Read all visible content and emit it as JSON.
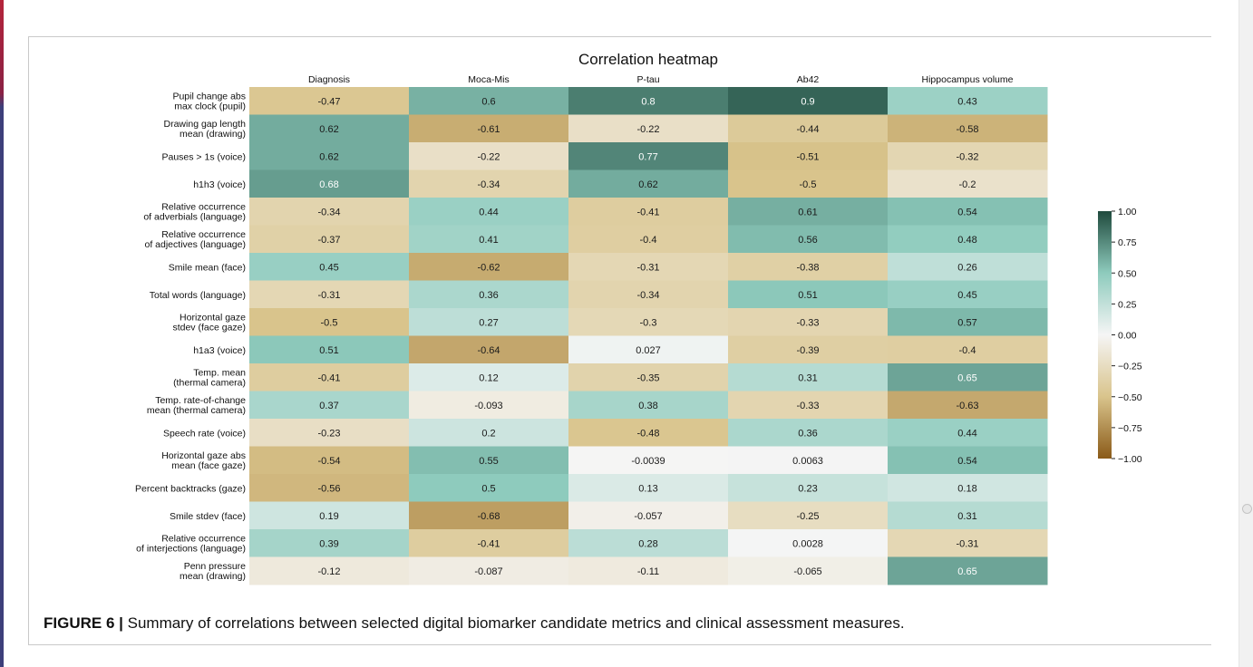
{
  "caption": {
    "label": "FIGURE 6 |",
    "text": " Summary of correlations between selected digital biomarker candidate metrics and clinical assessment measures."
  },
  "colors": {
    "min": "#8a5a18",
    "negative_mid": "#d9c48c",
    "zero": "#f5f5f5",
    "positive_mid": "#8ecbbd",
    "max": "#1f4a3d"
  },
  "chart_data": {
    "type": "heatmap",
    "title": "Correlation heatmap",
    "columns": [
      "Diagnosis",
      "Moca-Mis",
      "P-tau",
      "Ab42",
      "Hippocampus volume"
    ],
    "rows": [
      "Pupil change abs\nmax clock (pupil)",
      "Drawing gap length\nmean (drawing)",
      "Pauses > 1s (voice)",
      "h1h3 (voice)",
      "Relative occurrence\nof adverbials (language)",
      "Relative occurrence\nof adjectives (language)",
      "Smile mean (face)",
      "Total words (language)",
      "Horizontal gaze\nstdev (face gaze)",
      "h1a3 (voice)",
      "Temp. mean\n(thermal camera)",
      "Temp. rate-of-change\nmean (thermal camera)",
      "Speech rate (voice)",
      "Horizontal gaze abs\nmean (face gaze)",
      "Percent backtracks (gaze)",
      "Smile stdev (face)",
      "Relative occurrence\nof interjections (language)",
      "Penn pressure\nmean (drawing)"
    ],
    "values": [
      [
        "-0.47",
        "0.6",
        "0.8",
        "0.9",
        "0.43"
      ],
      [
        "0.62",
        "-0.61",
        "-0.22",
        "-0.44",
        "-0.58"
      ],
      [
        "0.62",
        "-0.22",
        "0.77",
        "-0.51",
        "-0.32"
      ],
      [
        "0.68",
        "-0.34",
        "0.62",
        "-0.5",
        "-0.2"
      ],
      [
        "-0.34",
        "0.44",
        "-0.41",
        "0.61",
        "0.54"
      ],
      [
        "-0.37",
        "0.41",
        "-0.4",
        "0.56",
        "0.48"
      ],
      [
        "0.45",
        "-0.62",
        "-0.31",
        "-0.38",
        "0.26"
      ],
      [
        "-0.31",
        "0.36",
        "-0.34",
        "0.51",
        "0.45"
      ],
      [
        "-0.5",
        "0.27",
        "-0.3",
        "-0.33",
        "0.57"
      ],
      [
        "0.51",
        "-0.64",
        "0.027",
        "-0.39",
        "-0.4"
      ],
      [
        "-0.41",
        "0.12",
        "-0.35",
        "0.31",
        "0.65"
      ],
      [
        "0.37",
        "-0.093",
        "0.38",
        "-0.33",
        "-0.63"
      ],
      [
        "-0.23",
        "0.2",
        "-0.48",
        "0.36",
        "0.44"
      ],
      [
        "-0.54",
        "0.55",
        "-0.0039",
        "0.0063",
        "0.54"
      ],
      [
        "-0.56",
        "0.5",
        "0.13",
        "0.23",
        "0.18"
      ],
      [
        "0.19",
        "-0.68",
        "-0.057",
        "-0.25",
        "0.31"
      ],
      [
        "0.39",
        "-0.41",
        "0.28",
        "0.0028",
        "-0.31"
      ],
      [
        "-0.12",
        "-0.087",
        "-0.11",
        "-0.065",
        "0.65"
      ]
    ],
    "colorbar": {
      "range": [
        -1.0,
        1.0
      ],
      "ticks": [
        "1.00",
        "0.75",
        "0.50",
        "0.25",
        "0.00",
        "−0.25",
        "−0.50",
        "−0.75",
        "−1.00"
      ],
      "tick_values": [
        1.0,
        0.75,
        0.5,
        0.25,
        0.0,
        -0.25,
        -0.5,
        -0.75,
        -1.0
      ]
    }
  }
}
